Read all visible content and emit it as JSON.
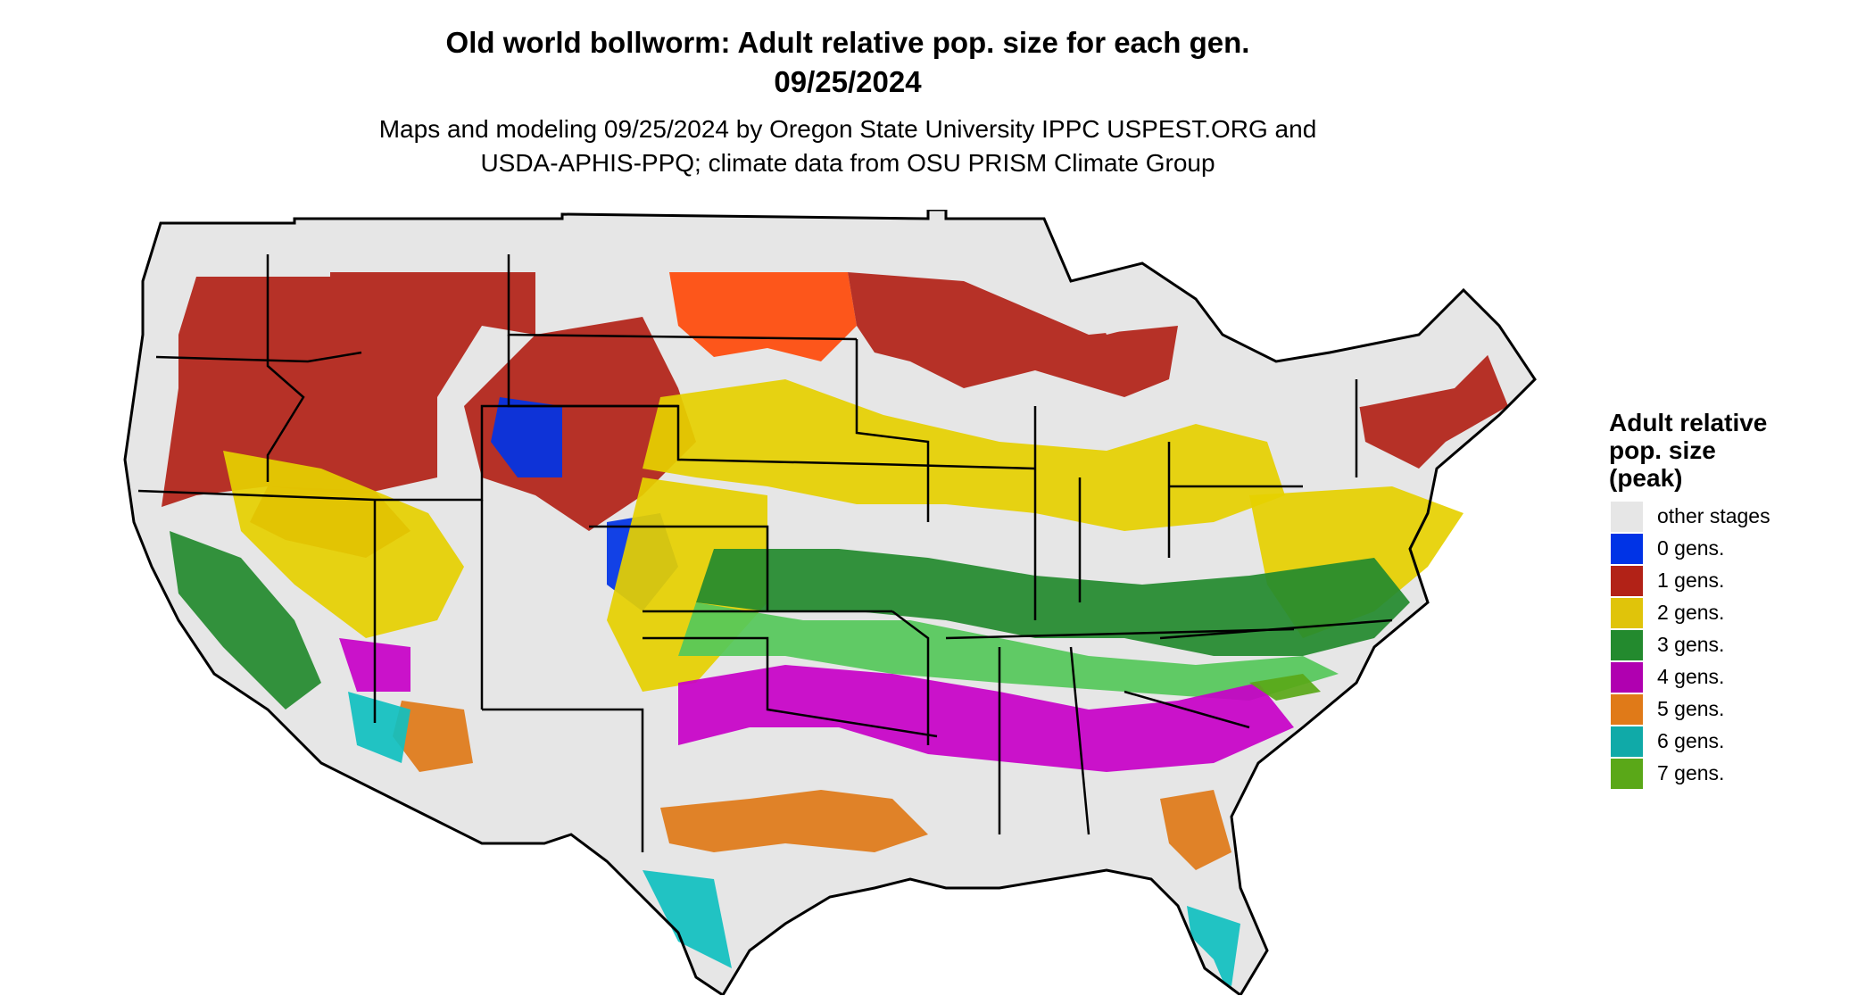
{
  "title": {
    "line1": "Old world bollworm: Adult relative pop. size for each gen.",
    "line2": "09/25/2024"
  },
  "subtitle": {
    "line1": "Maps and modeling 09/25/2024 by Oregon State University IPPC USPEST.ORG and",
    "line2": "USDA-APHIS-PPQ; climate data from OSU PRISM Climate Group"
  },
  "legend": {
    "title_line1": "Adult relative",
    "title_line2": "pop. size",
    "title_line3": "(peak)",
    "items": [
      {
        "label": "other stages",
        "color": "#e6e6e6"
      },
      {
        "label": "0 gens.",
        "color": "#0033e6"
      },
      {
        "label": "1 gens.",
        "color": "#b22217"
      },
      {
        "label": "2 gens.",
        "color": "#e0c40a"
      },
      {
        "label": "3 gens.",
        "color": "#238a2e"
      },
      {
        "label": "4 gens.",
        "color": "#b000b0"
      },
      {
        "label": "5 gens.",
        "color": "#e07a18"
      },
      {
        "label": "6 gens.",
        "color": "#10aaa8"
      },
      {
        "label": "7 gens.",
        "color": "#5aa818"
      }
    ]
  },
  "map": {
    "colors": {
      "land": "#e6e6e6",
      "outline": "#000000",
      "gen0": "#0033e6",
      "gen1": "#b22217",
      "gen1_bright": "#ff4a0a",
      "gen2": "#e6d000",
      "gen3": "#238a2e",
      "gen3_light": "#55c85a",
      "gen4": "#c800c8",
      "gen5": "#e07a18",
      "gen6": "#10c0c0",
      "gen7": "#5aa818"
    }
  }
}
